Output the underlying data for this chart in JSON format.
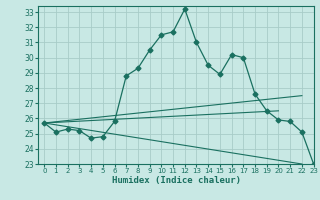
{
  "xlabel": "Humidex (Indice chaleur)",
  "xlim": [
    -0.5,
    23
  ],
  "ylim": [
    23,
    33.4
  ],
  "yticks": [
    23,
    24,
    25,
    26,
    27,
    28,
    29,
    30,
    31,
    32,
    33
  ],
  "xticks": [
    0,
    1,
    2,
    3,
    4,
    5,
    6,
    7,
    8,
    9,
    10,
    11,
    12,
    13,
    14,
    15,
    16,
    17,
    18,
    19,
    20,
    21,
    22,
    23
  ],
  "bg_color": "#c8e8e4",
  "grid_color": "#a8ccc8",
  "line_color": "#1a7060",
  "main_line": {
    "x": [
      0,
      1,
      2,
      3,
      4,
      5,
      6,
      7,
      8,
      9,
      10,
      11,
      12,
      13,
      14,
      15,
      16,
      17,
      18,
      19,
      20,
      21,
      22,
      23
    ],
    "y": [
      25.7,
      25.1,
      25.3,
      25.2,
      24.7,
      24.8,
      25.8,
      28.8,
      29.3,
      30.5,
      31.5,
      31.7,
      33.2,
      31.0,
      29.5,
      28.9,
      30.2,
      30.0,
      27.6,
      26.5,
      25.9,
      25.8,
      25.1,
      23.0
    ]
  },
  "extra_lines": [
    {
      "x": [
        0,
        22
      ],
      "y": [
        25.7,
        27.5
      ]
    },
    {
      "x": [
        0,
        20
      ],
      "y": [
        25.7,
        26.5
      ]
    },
    {
      "x": [
        0,
        22
      ],
      "y": [
        25.7,
        23.0
      ]
    }
  ]
}
